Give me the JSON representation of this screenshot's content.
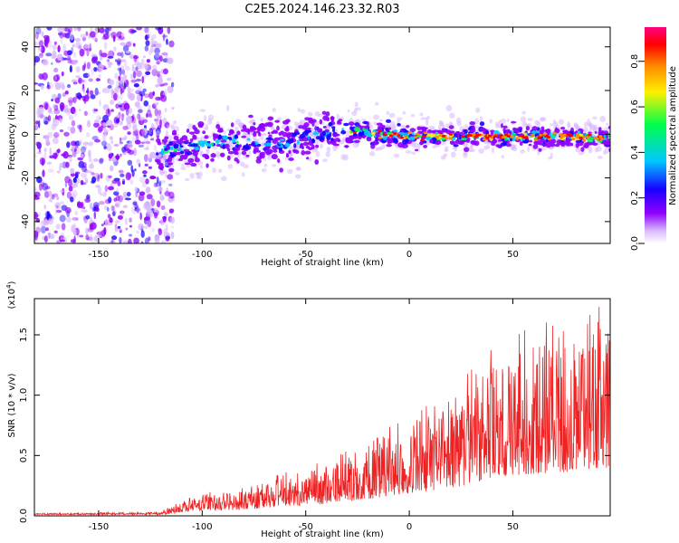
{
  "title": "C2E5.2024.146.23.32.R03",
  "chart_data": [
    {
      "type": "heatmap",
      "xlabel": "Height of straight line (km)",
      "ylabel": "Frequency (Hz)",
      "xlim": [
        -181,
        97
      ],
      "ylim": [
        -50,
        49
      ],
      "xticks": [
        -150,
        -100,
        -50,
        0,
        50
      ],
      "yticks": [
        -40,
        -20,
        0,
        20,
        40
      ],
      "colorbar": {
        "label": "Normalized spectral amplitude",
        "range": [
          0.0,
          0.95
        ],
        "ticks": [
          0.0,
          0.2,
          0.4,
          0.6,
          0.8
        ],
        "colors": [
          "#ffffff",
          "#d9b8ff",
          "#8f00ff",
          "#1900ff",
          "#00c8ff",
          "#00ff4a",
          "#fff000",
          "#ff8a00",
          "#ff0000",
          "#ff0080"
        ]
      },
      "ridge": [
        {
          "x": -120,
          "y": -8
        },
        {
          "x": -100,
          "y": -5
        },
        {
          "x": -80,
          "y": -3
        },
        {
          "x": -60,
          "y": -4
        },
        {
          "x": -40,
          "y": 1
        },
        {
          "x": -20,
          "y": 1
        },
        {
          "x": 0,
          "y": -1
        },
        {
          "x": 20,
          "y": -1
        },
        {
          "x": 40,
          "y": -1
        },
        {
          "x": 60,
          "y": -1
        },
        {
          "x": 80,
          "y": -1
        },
        {
          "x": 95,
          "y": -2
        }
      ],
      "noise_region": {
        "x_from": -181,
        "x_to": -118
      }
    },
    {
      "type": "line",
      "xlabel": "Height of straight line (km)",
      "ylabel": "SNR (10 * v/v)",
      "y_multiplier": "(x10^4)",
      "xlim": [
        -181,
        97
      ],
      "ylim": [
        0,
        1.8
      ],
      "xticks": [
        -150,
        -100,
        -50,
        0,
        50
      ],
      "yticks": [
        "0.0",
        "0.5",
        "1.0",
        "1.5"
      ],
      "color": "#ee2222",
      "envelope": [
        {
          "x": -181,
          "y": 0.02
        },
        {
          "x": -120,
          "y": 0.03
        },
        {
          "x": -110,
          "y": 0.12
        },
        {
          "x": -100,
          "y": 0.18
        },
        {
          "x": -80,
          "y": 0.2
        },
        {
          "x": -60,
          "y": 0.32
        },
        {
          "x": -40,
          "y": 0.4
        },
        {
          "x": -20,
          "y": 0.55
        },
        {
          "x": 0,
          "y": 0.75
        },
        {
          "x": 20,
          "y": 0.9
        },
        {
          "x": 40,
          "y": 1.25
        },
        {
          "x": 60,
          "y": 1.4
        },
        {
          "x": 80,
          "y": 1.45
        },
        {
          "x": 97,
          "y": 1.6
        }
      ]
    }
  ]
}
